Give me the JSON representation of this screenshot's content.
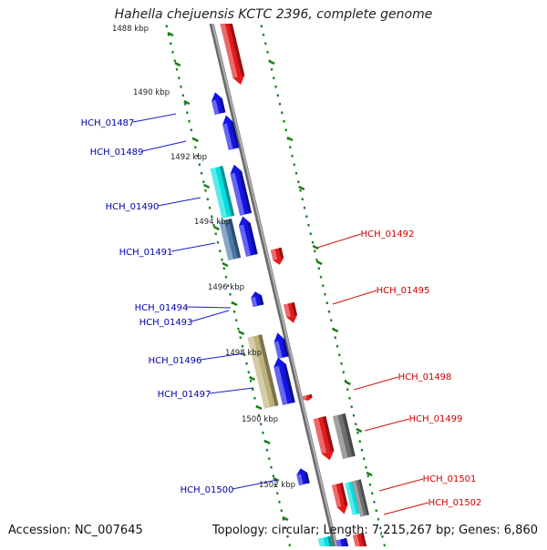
{
  "title": "Hahella chejuensis KCTC 2396, complete genome",
  "accession_text": "Accession: NC_007645",
  "summary_text": "Topology: circular; Length: 7,215,267 bp; Genes: 6,860",
  "colors": {
    "backbone": "#8c8c8c",
    "tick": "#1a7f1a",
    "forward_gene": "#e31a1c",
    "reverse_gene": "#1414e6",
    "forward_label": "#cc0000",
    "reverse_label": "#0000aa",
    "cyan_gene": "#00e0e0",
    "steelblue_gene": "#4a78a8",
    "khaki_gene": "#bdb27a",
    "gray_gene": "#6e6e6e"
  },
  "chart_data": {
    "type": "genome-map",
    "unit": "kbp",
    "scale_labels": [
      "1488 kbp",
      "1490 kbp",
      "1492 kbp",
      "1494 kbp",
      "1496 kbp",
      "1498 kbp",
      "1500 kbp",
      "1502 kbp"
    ],
    "reverse_strand_labels": [
      "HCH_01487",
      "HCH_01489",
      "HCH_01490",
      "HCH_01491",
      "HCH_01494",
      "HCH_01493",
      "HCH_01496",
      "HCH_01497",
      "HCH_01500"
    ],
    "forward_strand_labels": [
      "HCH_01492",
      "HCH_01495",
      "HCH_01498",
      "HCH_01499",
      "HCH_01501",
      "HCH_01502"
    ]
  }
}
